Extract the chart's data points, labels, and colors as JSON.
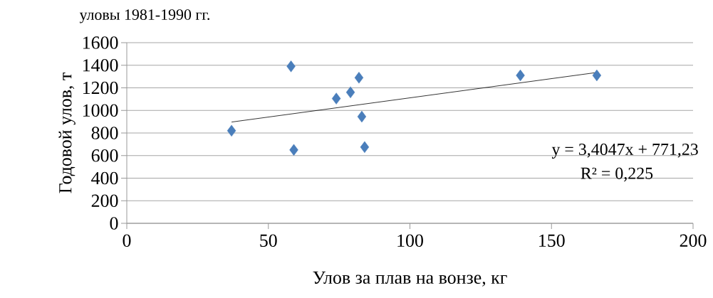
{
  "chart_data": {
    "type": "scatter",
    "title": "уловы 1981-1990  гг.",
    "xlabel": "Улов за плав на вонзе, кг",
    "ylabel": "Годовой  улов, т",
    "series": [
      {
        "color": "#4a7ebb",
        "marker": "diamond",
        "x": [
          37,
          58,
          59,
          74,
          79,
          82,
          83,
          84,
          139,
          166
        ],
        "values": [
          820,
          1390,
          650,
          1105,
          1160,
          1290,
          945,
          675,
          1310,
          1310
        ]
      },
      {
        "type": "line",
        "color": "#000000",
        "marker": "none",
        "x": [
          37,
          166
        ],
        "values": [
          897,
          1336
        ]
      }
    ],
    "annotations": [
      "y = 3,4047x  + 771,23",
      "R² = 0,225"
    ],
    "xlim": [
      0,
      200
    ],
    "xticks": [
      0,
      50,
      100,
      150,
      200
    ],
    "ylim": [
      0,
      1600
    ],
    "yticks": [
      0,
      200,
      400,
      600,
      800,
      1000,
      1200,
      1400,
      1600
    ],
    "grid": "y"
  }
}
